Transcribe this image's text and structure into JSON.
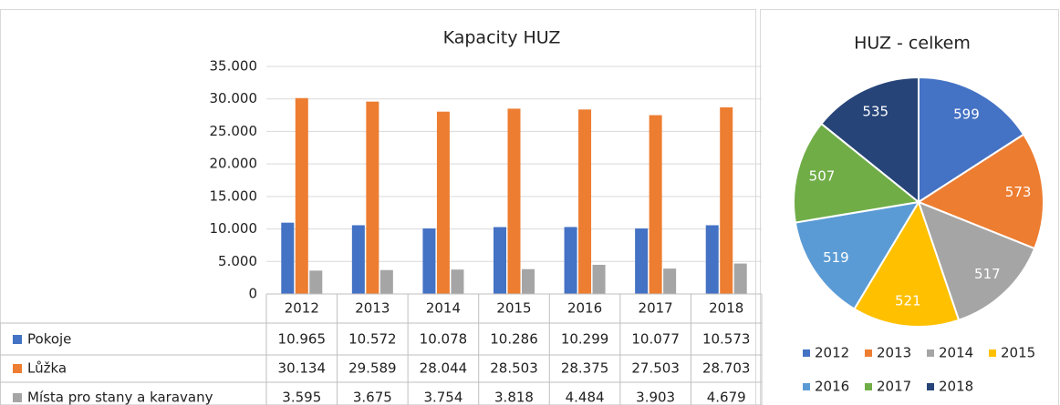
{
  "chart_data": [
    {
      "type": "bar",
      "title": "Kapacity HUZ",
      "categories": [
        "2012",
        "2013",
        "2014",
        "2015",
        "2016",
        "2017",
        "2018"
      ],
      "series": [
        {
          "name": "Pokoje",
          "color": "#4472c4",
          "values": [
            10965,
            10572,
            10078,
            10286,
            10299,
            10077,
            10573
          ],
          "value_labels": [
            "10.965",
            "10.572",
            "10.078",
            "10.286",
            "10.299",
            "10.077",
            "10.573"
          ]
        },
        {
          "name": "Lůžka",
          "color": "#ed7d31",
          "values": [
            30134,
            29589,
            28044,
            28503,
            28375,
            27503,
            28703
          ],
          "value_labels": [
            "30.134",
            "29.589",
            "28.044",
            "28.503",
            "28.375",
            "27.503",
            "28.703"
          ]
        },
        {
          "name": "Místa pro stany a karavany",
          "color": "#a5a5a5",
          "values": [
            3595,
            3675,
            3754,
            3818,
            4484,
            3903,
            4679
          ],
          "value_labels": [
            "3.595",
            "3.675",
            "3.754",
            "3.818",
            "4.484",
            "3.903",
            "4.679"
          ]
        }
      ],
      "ylim": [
        0,
        35000
      ],
      "yticks": [
        0,
        {
          "value": 5000,
          "label": "5.000"
        },
        {
          "value": 10000,
          "label": "10.000"
        },
        {
          "value": 15000,
          "label": "15.000"
        },
        {
          "value": 20000,
          "label": "20.000"
        },
        {
          "value": 25000,
          "label": "25.000"
        },
        {
          "value": 30000,
          "label": "30.000"
        },
        {
          "value": 35000,
          "label": "35.000"
        }
      ],
      "grid": true
    },
    {
      "type": "pie",
      "title": "HUZ - celkem",
      "categories": [
        "2012",
        "2013",
        "2014",
        "2015",
        "2016",
        "2017",
        "2018"
      ],
      "values": [
        599,
        573,
        517,
        521,
        519,
        507,
        535
      ],
      "colors": [
        "#4472c4",
        "#ed7d31",
        "#a5a5a5",
        "#ffc000",
        "#5b9bd5",
        "#70ad47",
        "#264478"
      ]
    }
  ]
}
